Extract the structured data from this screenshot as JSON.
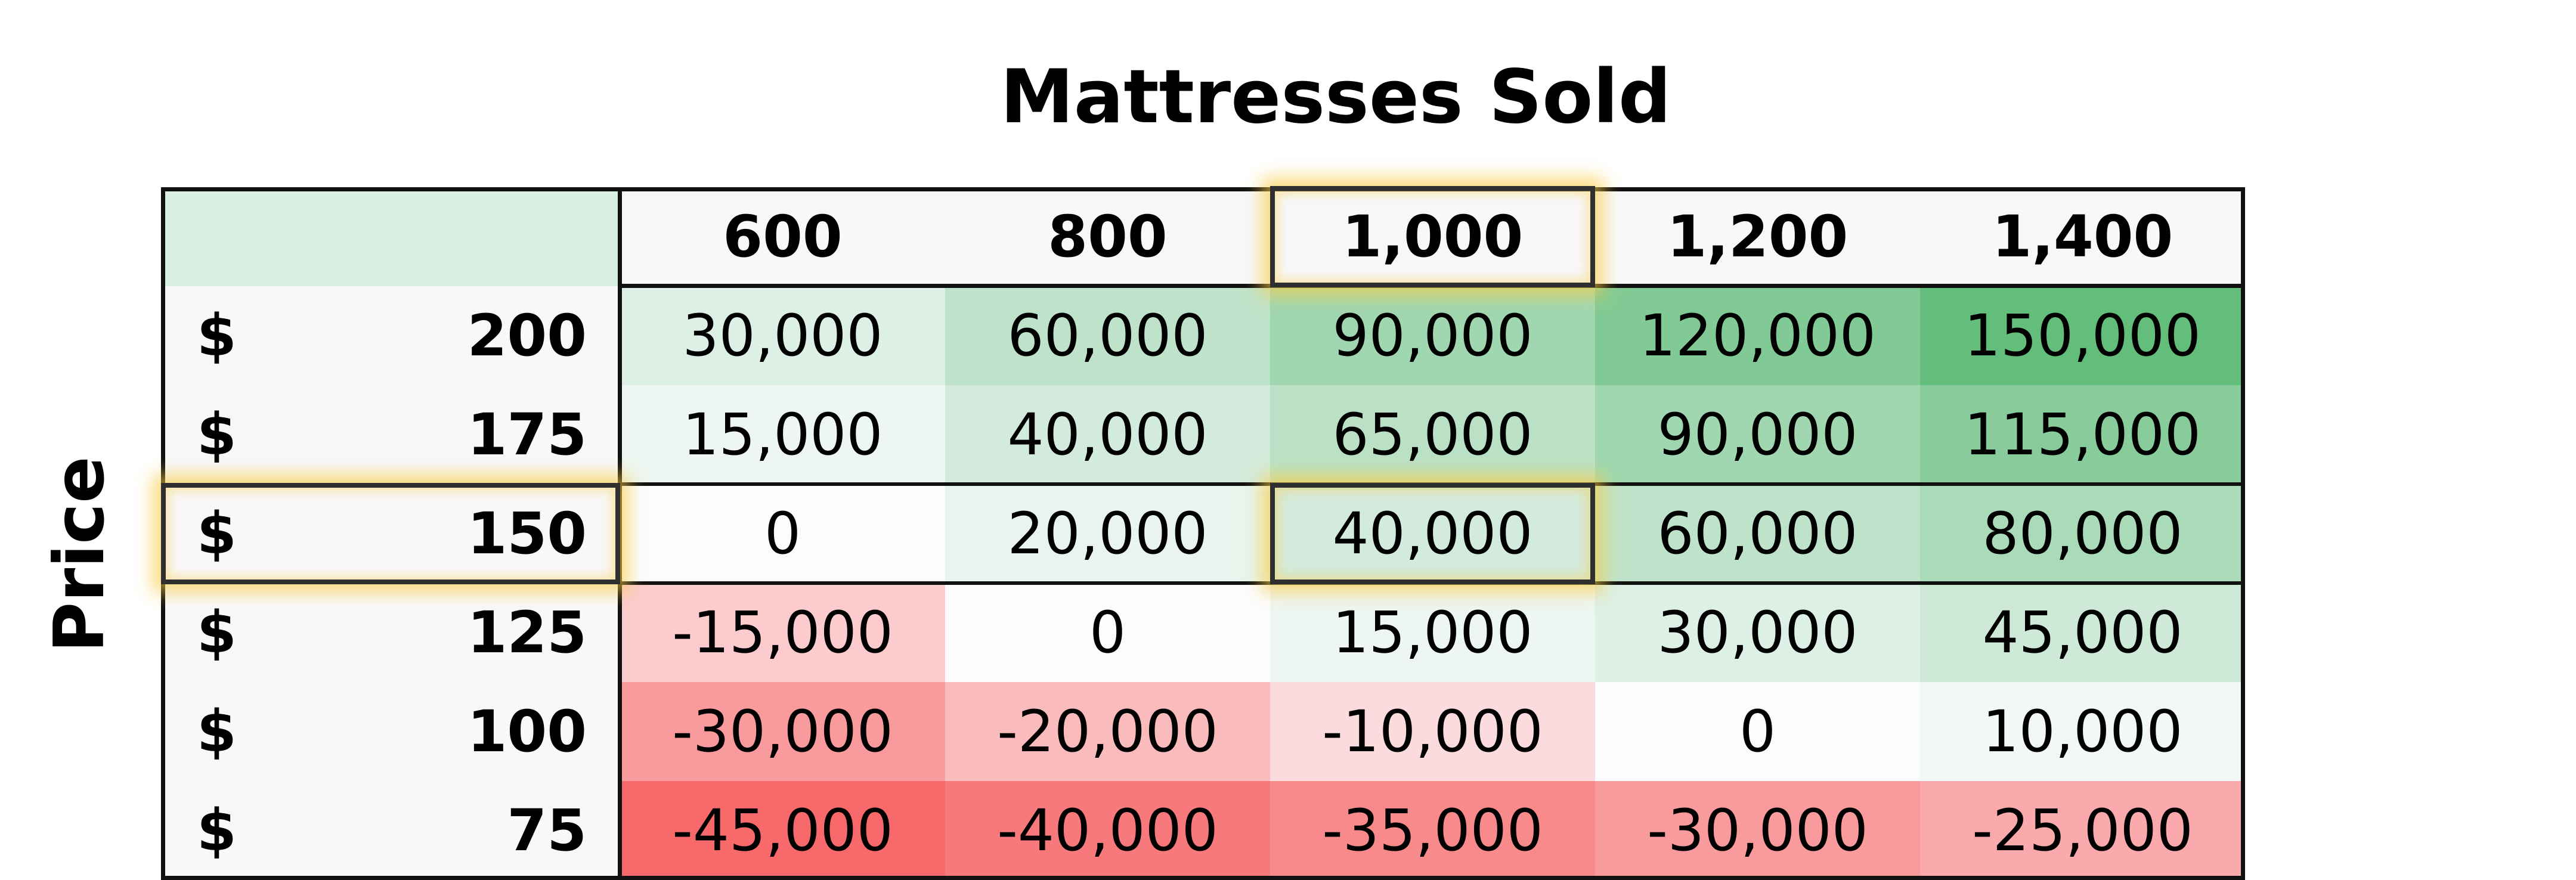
{
  "chart_data": {
    "type": "heatmap",
    "title": "Mattresses Sold",
    "ylabel": "Price",
    "columns": [
      "600",
      "800",
      "1,000",
      "1,200",
      "1,400"
    ],
    "rows": [
      {
        "currency": "$",
        "price": "200",
        "values": [
          "30,000",
          "60,000",
          "90,000",
          "120,000",
          "150,000"
        ]
      },
      {
        "currency": "$",
        "price": "175",
        "values": [
          "15,000",
          "40,000",
          "65,000",
          "90,000",
          "115,000"
        ]
      },
      {
        "currency": "$",
        "price": "150",
        "values": [
          "0",
          "20,000",
          "40,000",
          "60,000",
          "80,000"
        ]
      },
      {
        "currency": "$",
        "price": "125",
        "values": [
          "-15,000",
          "0",
          "15,000",
          "30,000",
          "45,000"
        ]
      },
      {
        "currency": "$",
        "price": "100",
        "values": [
          "-30,000",
          "-20,000",
          "-10,000",
          "0",
          "10,000"
        ]
      },
      {
        "currency": "$",
        "price": "75",
        "values": [
          "-45,000",
          "-40,000",
          "-35,000",
          "-30,000",
          "-25,000"
        ]
      }
    ],
    "color_scale": {
      "min": -45000,
      "mid": 0,
      "max": 150000,
      "min_color": "#f8696b",
      "mid_color": "#fcfcff",
      "max_color": "#63be7b"
    },
    "highlighted": {
      "column": "1,000",
      "row_price": "150"
    }
  }
}
